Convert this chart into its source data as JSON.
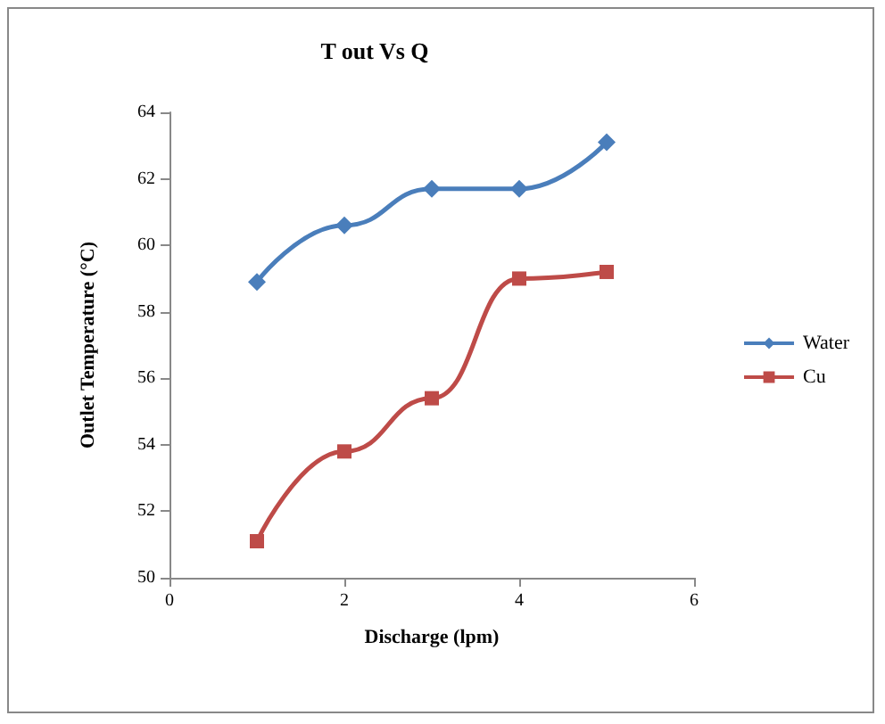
{
  "chart_data": {
    "type": "line",
    "title": "T out Vs Q",
    "xlabel": "Discharge (lpm)",
    "ylabel": "Outlet Temperature (°C)",
    "x": [
      1,
      2,
      3,
      4,
      5
    ],
    "series": [
      {
        "name": "Water",
        "color": "#4a7ebb",
        "marker": "diamond",
        "values": [
          58.9,
          60.6,
          61.7,
          61.7,
          63.1
        ]
      },
      {
        "name": "Cu",
        "color": "#be4b48",
        "marker": "square",
        "values": [
          51.1,
          53.8,
          55.4,
          59.0,
          59.2
        ]
      }
    ],
    "xlim": [
      0,
      6
    ],
    "xticks": [
      0,
      2,
      4,
      6
    ],
    "ylim": [
      50,
      64
    ],
    "yticks": [
      50,
      52,
      54,
      56,
      58,
      60,
      62,
      64
    ],
    "grid": false,
    "legend": "right"
  }
}
